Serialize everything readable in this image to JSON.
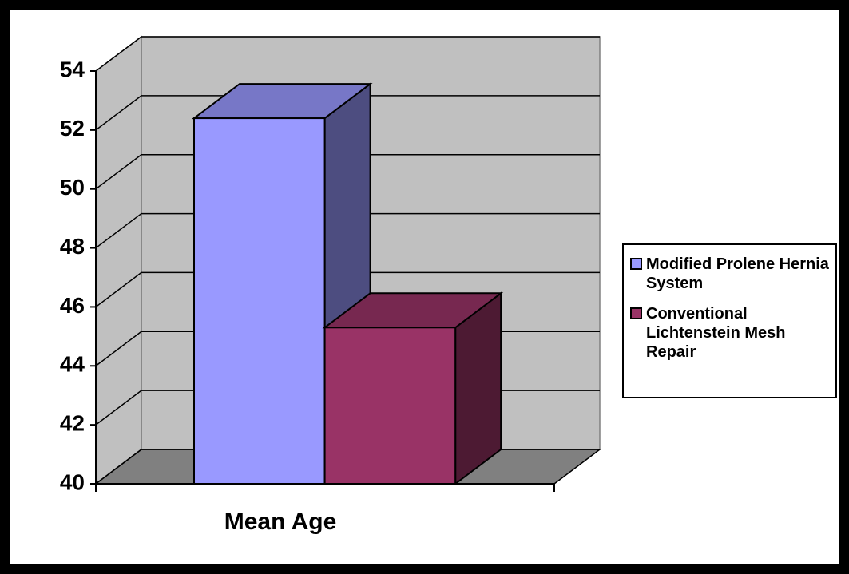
{
  "chart_data": {
    "type": "bar",
    "categories": [
      "Mean Age"
    ],
    "series": [
      {
        "name": "Modified Prolene Hernia System",
        "color": "#9999ff",
        "values": [
          52.4
        ]
      },
      {
        "name": "Conventional Lichtenstein Mesh Repair",
        "color": "#993366",
        "values": [
          45.3
        ]
      }
    ],
    "ylim": [
      40,
      54
    ],
    "yticks": [
      40,
      42,
      44,
      46,
      48,
      50,
      52,
      54
    ],
    "grid": true,
    "legend": "right"
  }
}
